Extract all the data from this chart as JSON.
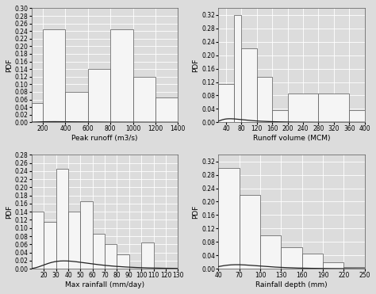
{
  "subplots": [
    {
      "xlabel": "Peak runoff (m3/s)",
      "ylabel": "PDF",
      "bar_edges": [
        100,
        200,
        400,
        600,
        800,
        1000,
        1200,
        1400
      ],
      "bar_heights": [
        0.05,
        0.245,
        0.08,
        0.14,
        0.245,
        0.12,
        0.065
      ],
      "xlim": [
        100,
        1400
      ],
      "ylim": [
        0,
        0.3
      ],
      "yticks": [
        0,
        0.02,
        0.04,
        0.06,
        0.08,
        0.1,
        0.12,
        0.14,
        0.16,
        0.18,
        0.2,
        0.22,
        0.24,
        0.26,
        0.28,
        0.3
      ],
      "xticks": [
        200,
        400,
        600,
        800,
        1000,
        1200,
        1400
      ],
      "curve_mu": 6.1,
      "curve_sigma": 0.65
    },
    {
      "xlabel": "Runoff volume (MCM)",
      "ylabel": "PDF",
      "bar_edges": [
        20,
        60,
        80,
        120,
        160,
        200,
        280,
        360,
        400
      ],
      "bar_heights": [
        0.115,
        0.32,
        0.22,
        0.135,
        0.035,
        0.085,
        0.085,
        0.035
      ],
      "xlim": [
        20,
        400
      ],
      "ylim": [
        0,
        0.34
      ],
      "yticks": [
        0,
        0.04,
        0.08,
        0.12,
        0.16,
        0.2,
        0.24,
        0.28,
        0.32
      ],
      "xticks": [
        40,
        80,
        120,
        160,
        200,
        240,
        280,
        320,
        360,
        400
      ],
      "curve_mu": 4.3,
      "curve_sigma": 0.62
    },
    {
      "xlabel": "Max rainfall (mm/day)",
      "ylabel": "PDF",
      "bar_edges": [
        10,
        20,
        30,
        40,
        50,
        60,
        70,
        80,
        90,
        100,
        110,
        120,
        130
      ],
      "bar_heights": [
        0.14,
        0.115,
        0.245,
        0.14,
        0.165,
        0.085,
        0.06,
        0.035,
        0.0,
        0.065,
        0.0,
        0.0
      ],
      "xlim": [
        10,
        130
      ],
      "ylim": [
        0,
        0.28
      ],
      "yticks": [
        0,
        0.02,
        0.04,
        0.06,
        0.08,
        0.1,
        0.12,
        0.14,
        0.16,
        0.18,
        0.2,
        0.22,
        0.24,
        0.26,
        0.28
      ],
      "xticks": [
        20,
        30,
        40,
        50,
        60,
        70,
        80,
        90,
        100,
        110,
        120,
        130
      ],
      "curve_mu": 3.85,
      "curve_sigma": 0.5
    },
    {
      "xlabel": "Rainfall depth (mm)",
      "ylabel": "PDF",
      "bar_edges": [
        40,
        70,
        100,
        130,
        160,
        190,
        220,
        250
      ],
      "bar_heights": [
        0.3,
        0.22,
        0.1,
        0.065,
        0.045,
        0.02,
        0.005
      ],
      "xlim": [
        40,
        250
      ],
      "ylim": [
        0,
        0.34
      ],
      "yticks": [
        0,
        0.04,
        0.08,
        0.12,
        0.16,
        0.2,
        0.24,
        0.28,
        0.32
      ],
      "xticks": [
        40,
        70,
        100,
        130,
        160,
        190,
        220,
        250
      ],
      "curve_mu": 4.4,
      "curve_sigma": 0.45
    }
  ],
  "bg_color": "#dcdcdc",
  "bar_color": "#f5f5f5",
  "bar_edge_color": "#555555",
  "curve_color": "#222222",
  "grid_color": "#ffffff",
  "tick_fontsize": 5.5,
  "label_fontsize": 6.5
}
